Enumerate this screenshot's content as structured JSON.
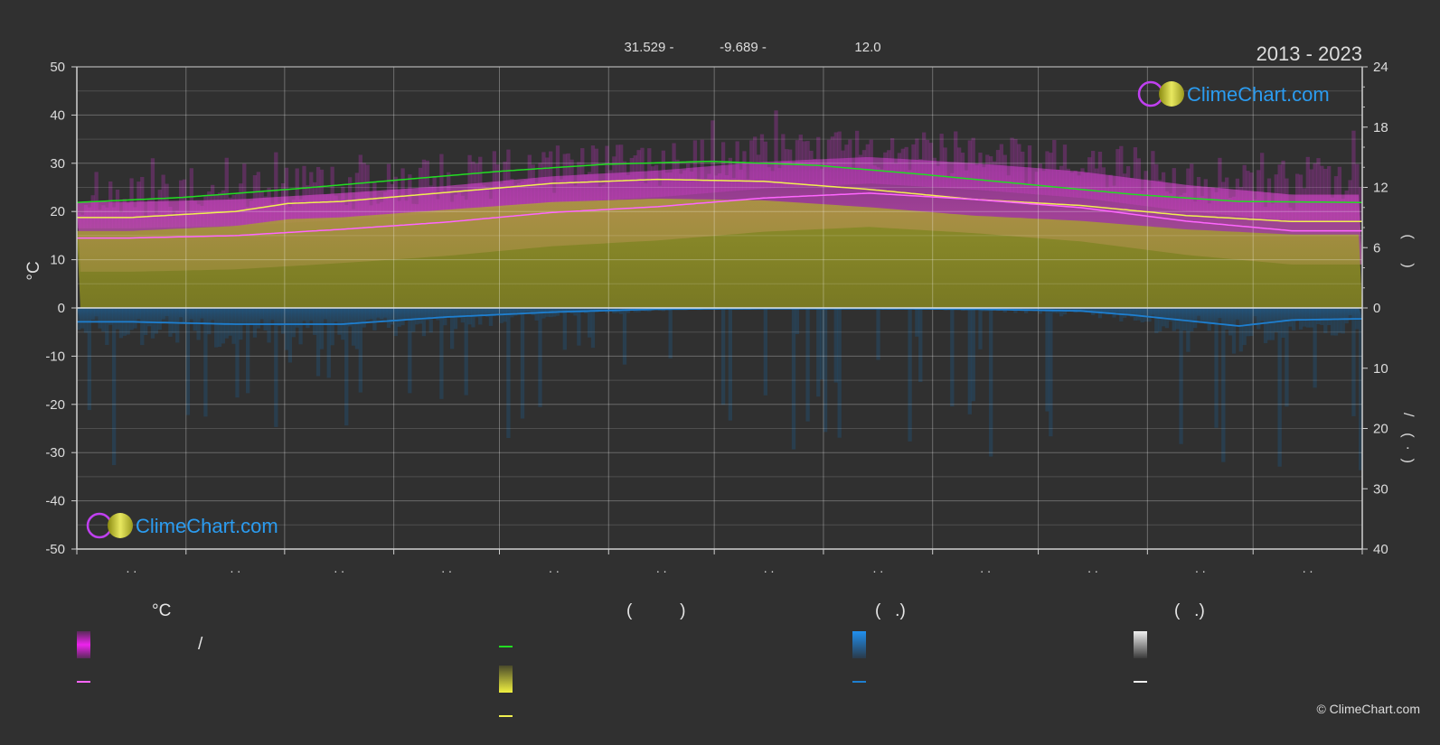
{
  "header": {
    "period": "2013 - 2023",
    "info": [
      "31.529 -",
      "-9.689 -",
      "12.0"
    ]
  },
  "logo_text": "ClimeChart.com",
  "copyright": "© ClimeChart.com",
  "colors": {
    "background": "#303030",
    "daylight_line": "#22dd22",
    "sunshine_fill": "#aaaa22",
    "sunshine_line": "#f0f050",
    "max_temp_fill": "#dd33cc",
    "mean_temp_line": "#ff66ff",
    "rain_line": "#1e7fd0",
    "rain_fill": "#1e5a88",
    "brand_blue": "#2b9cf0"
  },
  "legend": {
    "headers": [
      "°C",
      "(          )",
      "(   .)",
      "(   .)"
    ],
    "slash": "/"
  },
  "chart_data": {
    "type": "area",
    "title": "",
    "xlabel": "",
    "ylabel": "°C",
    "x_tick_labels": [
      ". .",
      ". .",
      ". .",
      ". .",
      ". .",
      ". .",
      ". .",
      ". .",
      ". .",
      ". .",
      ". .",
      ". ."
    ],
    "ylim": [
      -50,
      50
    ],
    "y_ticks": [
      50,
      40,
      30,
      20,
      10,
      0,
      -10,
      -20,
      -30,
      -40,
      -50
    ],
    "y2_upper_ticks": [
      24,
      18,
      12,
      6,
      0
    ],
    "y2_lower_ticks": [
      10,
      20,
      30,
      40
    ],
    "y2_label_upper": "(      )",
    "y2_label_lower": "/    (  ·  )",
    "grid": true,
    "month_bounds_day": [
      0,
      31,
      59,
      90,
      120,
      151,
      181,
      212,
      243,
      273,
      304,
      334,
      365
    ],
    "series": [
      {
        "key": "daylight",
        "x": [
          0,
          30,
          60,
          90,
          120,
          150,
          180,
          210,
          240,
          270,
          300,
          330,
          365
        ],
        "values": [
          10.5,
          11.0,
          11.8,
          12.7,
          13.6,
          14.3,
          14.6,
          14.2,
          13.3,
          12.3,
          11.3,
          10.6,
          10.5
        ]
      },
      {
        "key": "sunshine",
        "x": [
          0,
          15,
          45,
          60,
          75,
          105,
          135,
          165,
          195,
          225,
          255,
          285,
          315,
          330,
          345,
          365
        ],
        "values": [
          9.0,
          9.0,
          9.6,
          10.4,
          10.6,
          11.5,
          12.4,
          12.8,
          12.6,
          11.8,
          10.8,
          10.2,
          9.2,
          8.9,
          8.6,
          8.6
        ]
      },
      {
        "key": "mean_temp",
        "x": [
          0,
          15,
          45,
          75,
          105,
          135,
          165,
          195,
          225,
          255,
          285,
          315,
          345,
          365
        ],
        "values": [
          14.5,
          14.5,
          15.0,
          16.3,
          17.8,
          19.8,
          21.0,
          22.8,
          23.8,
          22.5,
          20.8,
          18.0,
          16.0,
          16.0
        ]
      },
      {
        "key": "rain",
        "x": [
          0,
          15,
          45,
          75,
          105,
          135,
          165,
          195,
          225,
          255,
          285,
          300,
          315,
          330,
          345,
          365
        ],
        "values": [
          2.3,
          2.3,
          2.7,
          2.7,
          1.5,
          0.7,
          0.2,
          0.1,
          0.1,
          0.2,
          0.5,
          1.2,
          2.1,
          3.0,
          2.0,
          1.8
        ]
      }
    ]
  }
}
